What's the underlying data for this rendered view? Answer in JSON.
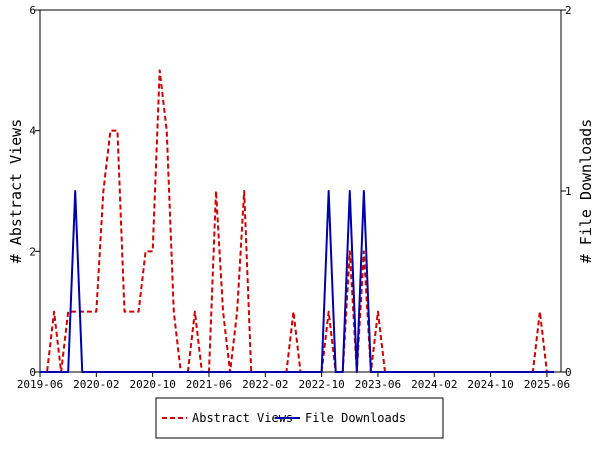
{
  "chart_data": {
    "type": "line",
    "title": "",
    "xlim": [
      "2019-06",
      "2025-08"
    ],
    "x_ticks": [
      "2019-06",
      "2020-02",
      "2020-10",
      "2021-06",
      "2022-02",
      "2022-10",
      "2023-06",
      "2024-02",
      "2024-10",
      "2025-06"
    ],
    "y_left": {
      "label": "# Abstract Views",
      "range": [
        0,
        6
      ],
      "ticks": [
        "0",
        "2",
        "4",
        "6"
      ]
    },
    "y_right": {
      "label": "# File Downloads",
      "range": [
        0,
        2
      ],
      "ticks": [
        "0",
        "1",
        "2"
      ]
    },
    "grid": false,
    "legend_position": "bottom",
    "series": [
      {
        "name": "Abstract Views",
        "axis": "left",
        "color": "#cc0000",
        "style": "dashed",
        "points": [
          [
            "2019-06",
            0
          ],
          [
            "2019-07",
            0
          ],
          [
            "2019-08",
            1
          ],
          [
            "2019-09",
            0
          ],
          [
            "2019-10",
            1
          ],
          [
            "2019-11",
            1
          ],
          [
            "2019-12",
            1
          ],
          [
            "2020-01",
            1
          ],
          [
            "2020-02",
            1
          ],
          [
            "2020-03",
            3
          ],
          [
            "2020-04",
            4
          ],
          [
            "2020-05",
            4
          ],
          [
            "2020-06",
            1
          ],
          [
            "2020-07",
            1
          ],
          [
            "2020-08",
            1
          ],
          [
            "2020-09",
            2
          ],
          [
            "2020-10",
            2
          ],
          [
            "2020-11",
            5
          ],
          [
            "2020-12",
            4
          ],
          [
            "2021-01",
            1
          ],
          [
            "2021-02",
            0
          ],
          [
            "2021-03",
            0
          ],
          [
            "2021-04",
            1
          ],
          [
            "2021-05",
            0
          ],
          [
            "2021-06",
            0
          ],
          [
            "2021-07",
            3
          ],
          [
            "2021-08",
            1
          ],
          [
            "2021-09",
            0
          ],
          [
            "2021-10",
            1
          ],
          [
            "2021-11",
            3
          ],
          [
            "2021-12",
            0
          ],
          [
            "2022-01",
            0
          ],
          [
            "2022-02",
            0
          ],
          [
            "2022-03",
            0
          ],
          [
            "2022-04",
            0
          ],
          [
            "2022-05",
            0
          ],
          [
            "2022-06",
            1
          ],
          [
            "2022-07",
            0
          ],
          [
            "2022-08",
            0
          ],
          [
            "2022-09",
            0
          ],
          [
            "2022-10",
            0
          ],
          [
            "2022-11",
            1
          ],
          [
            "2022-12",
            0
          ],
          [
            "2023-01",
            0
          ],
          [
            "2023-02",
            2
          ],
          [
            "2023-03",
            0
          ],
          [
            "2023-04",
            2
          ],
          [
            "2023-05",
            0
          ],
          [
            "2023-06",
            1
          ],
          [
            "2023-07",
            0
          ],
          [
            "2023-08",
            0
          ],
          [
            "2023-09",
            0
          ],
          [
            "2023-10",
            0
          ],
          [
            "2023-11",
            0
          ],
          [
            "2023-12",
            0
          ],
          [
            "2024-01",
            0
          ],
          [
            "2024-02",
            0
          ],
          [
            "2024-03",
            0
          ],
          [
            "2024-04",
            0
          ],
          [
            "2024-05",
            0
          ],
          [
            "2024-06",
            0
          ],
          [
            "2024-07",
            0
          ],
          [
            "2024-08",
            0
          ],
          [
            "2024-09",
            0
          ],
          [
            "2024-10",
            0
          ],
          [
            "2024-11",
            0
          ],
          [
            "2024-12",
            0
          ],
          [
            "2025-01",
            0
          ],
          [
            "2025-02",
            0
          ],
          [
            "2025-03",
            0
          ],
          [
            "2025-04",
            0
          ],
          [
            "2025-05",
            1
          ],
          [
            "2025-06",
            0
          ],
          [
            "2025-07",
            0
          ]
        ]
      },
      {
        "name": "File Downloads",
        "axis": "right",
        "color": "#0000aa",
        "style": "solid",
        "points": [
          [
            "2019-06",
            0
          ],
          [
            "2019-07",
            0
          ],
          [
            "2019-08",
            0
          ],
          [
            "2019-09",
            0
          ],
          [
            "2019-10",
            0
          ],
          [
            "2019-11",
            1
          ],
          [
            "2019-12",
            0
          ],
          [
            "2020-01",
            0
          ],
          [
            "2020-02",
            0
          ],
          [
            "2020-03",
            0
          ],
          [
            "2020-04",
            0
          ],
          [
            "2020-05",
            0
          ],
          [
            "2020-06",
            0
          ],
          [
            "2020-07",
            0
          ],
          [
            "2020-08",
            0
          ],
          [
            "2020-09",
            0
          ],
          [
            "2020-10",
            0
          ],
          [
            "2020-11",
            0
          ],
          [
            "2020-12",
            0
          ],
          [
            "2021-01",
            0
          ],
          [
            "2021-02",
            0
          ],
          [
            "2021-03",
            0
          ],
          [
            "2021-04",
            0
          ],
          [
            "2021-05",
            0
          ],
          [
            "2021-06",
            0
          ],
          [
            "2021-07",
            0
          ],
          [
            "2021-08",
            0
          ],
          [
            "2021-09",
            0
          ],
          [
            "2021-10",
            0
          ],
          [
            "2021-11",
            0
          ],
          [
            "2021-12",
            0
          ],
          [
            "2022-01",
            0
          ],
          [
            "2022-02",
            0
          ],
          [
            "2022-03",
            0
          ],
          [
            "2022-04",
            0
          ],
          [
            "2022-05",
            0
          ],
          [
            "2022-06",
            0
          ],
          [
            "2022-07",
            0
          ],
          [
            "2022-08",
            0
          ],
          [
            "2022-09",
            0
          ],
          [
            "2022-10",
            0
          ],
          [
            "2022-11",
            1
          ],
          [
            "2022-12",
            0
          ],
          [
            "2023-01",
            0
          ],
          [
            "2023-02",
            1
          ],
          [
            "2023-03",
            0
          ],
          [
            "2023-04",
            1
          ],
          [
            "2023-05",
            0
          ],
          [
            "2023-06",
            0
          ],
          [
            "2023-07",
            0
          ],
          [
            "2023-08",
            0
          ],
          [
            "2023-09",
            0
          ],
          [
            "2023-10",
            0
          ],
          [
            "2023-11",
            0
          ],
          [
            "2023-12",
            0
          ],
          [
            "2024-01",
            0
          ],
          [
            "2024-02",
            0
          ],
          [
            "2024-03",
            0
          ],
          [
            "2024-04",
            0
          ],
          [
            "2024-05",
            0
          ],
          [
            "2024-06",
            0
          ],
          [
            "2024-07",
            0
          ],
          [
            "2024-08",
            0
          ],
          [
            "2024-09",
            0
          ],
          [
            "2024-10",
            0
          ],
          [
            "2024-11",
            0
          ],
          [
            "2024-12",
            0
          ],
          [
            "2025-01",
            0
          ],
          [
            "2025-02",
            0
          ],
          [
            "2025-03",
            0
          ],
          [
            "2025-04",
            0
          ],
          [
            "2025-05",
            0
          ],
          [
            "2025-06",
            0
          ],
          [
            "2025-07",
            0
          ]
        ]
      }
    ]
  },
  "legend": {
    "items": [
      {
        "label": "Abstract Views",
        "color": "#cc0000",
        "style": "dashed"
      },
      {
        "label": "File Downloads",
        "color": "#0000aa",
        "style": "solid"
      }
    ]
  }
}
